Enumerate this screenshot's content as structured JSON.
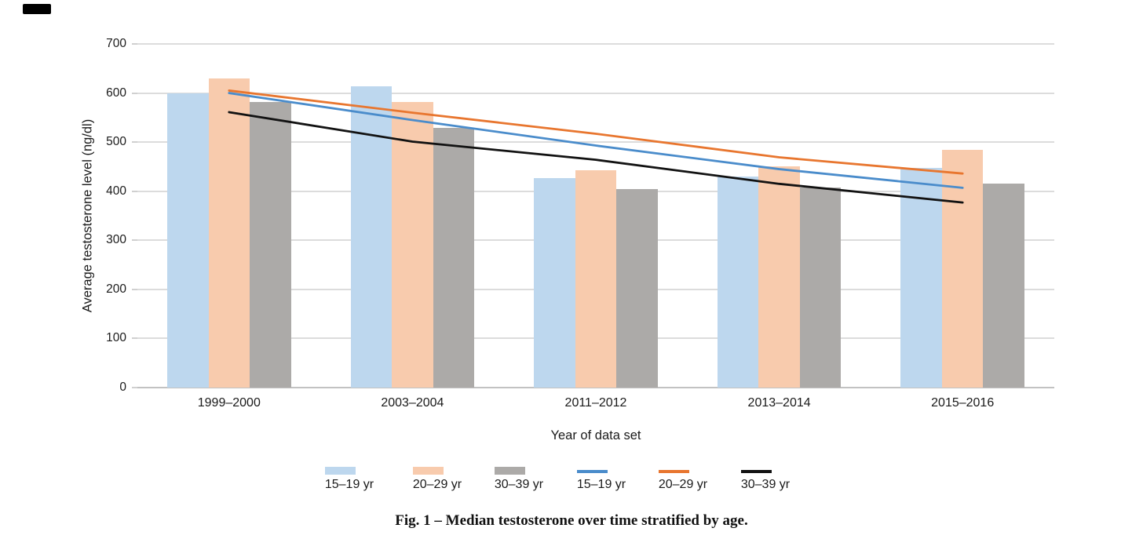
{
  "figure": {
    "caption": "Fig. 1 – Median testosterone over time stratified by age."
  },
  "chart_data": {
    "type": "bar",
    "subtype": "grouped bars with trend lines",
    "categories": [
      "1999–2000",
      "2003–2004",
      "2011–2012",
      "2013–2014",
      "2015–2016"
    ],
    "bar_series": [
      {
        "name": "15–19 yr",
        "color": "#BDD7EE",
        "values": [
          600,
          614,
          427,
          430,
          447
        ]
      },
      {
        "name": "20–29 yr",
        "color": "#F8CBAD",
        "values": [
          630,
          582,
          443,
          451,
          484
        ]
      },
      {
        "name": "30–39 yr",
        "color": "#ACAAA8",
        "values": [
          581,
          529,
          404,
          407,
          415
        ]
      }
    ],
    "line_series": [
      {
        "name": "15–19 yr",
        "color": "#4A8CCB",
        "values": [
          600,
          545,
          493,
          445,
          407
        ]
      },
      {
        "name": "20–29 yr",
        "color": "#E8762F",
        "values": [
          605,
          560,
          517,
          469,
          436
        ]
      },
      {
        "name": "30–39 yr",
        "color": "#121212",
        "values": [
          561,
          501,
          464,
          415,
          377
        ]
      }
    ],
    "xlabel": "Year of data set",
    "ylabel": "Average testosterone level (ng/dl)",
    "ylim": [
      0,
      700
    ],
    "yticks": [
      0,
      100,
      200,
      300,
      400,
      500,
      600,
      700
    ],
    "grid": "horizontal",
    "legend_position": "bottom"
  },
  "legend": {
    "entries": [
      {
        "label": "15–19 yr",
        "type": "bar",
        "color": "#BDD7EE"
      },
      {
        "label": "20–29 yr",
        "type": "bar",
        "color": "#F8CBAD"
      },
      {
        "label": "30–39 yr",
        "type": "bar",
        "color": "#ACAAA8"
      },
      {
        "label": "15–19 yr",
        "type": "line",
        "color": "#4A8CCB"
      },
      {
        "label": "20–29 yr",
        "type": "line",
        "color": "#E8762F"
      },
      {
        "label": "30–39 yr",
        "type": "line",
        "color": "#121212"
      }
    ]
  }
}
